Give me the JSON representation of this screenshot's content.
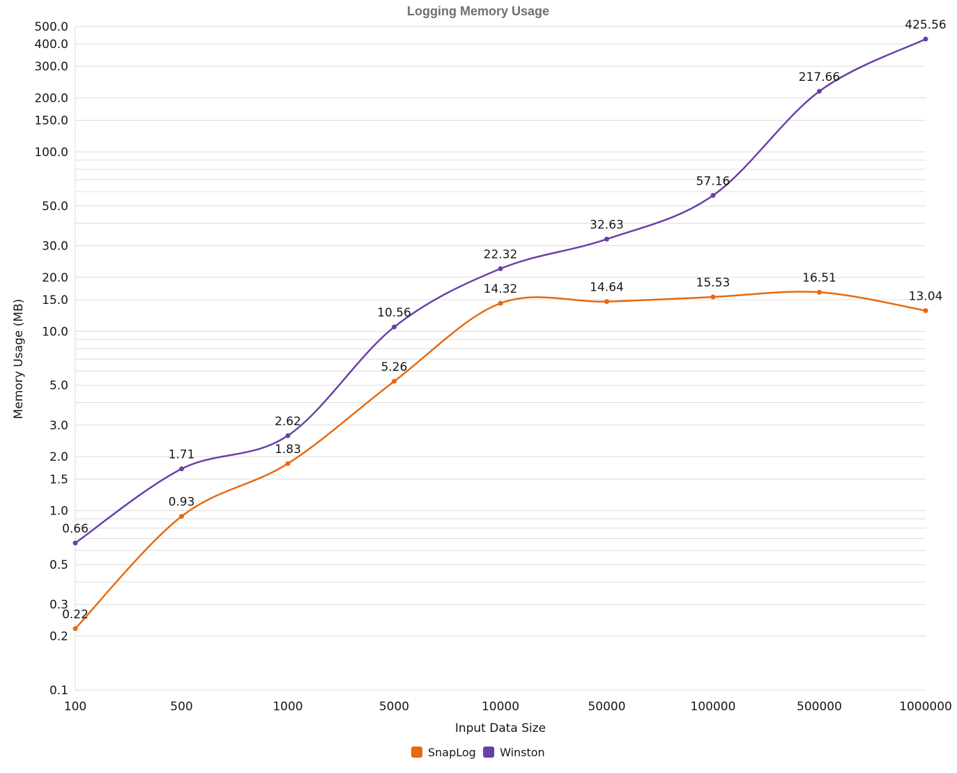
{
  "chart_data": {
    "type": "line",
    "title": "Logging Memory Usage",
    "xlabel": "Input Data Size",
    "ylabel": "Memory Usage (MB)",
    "yscale": "log",
    "ylim": [
      0.1,
      500
    ],
    "categories": [
      "100",
      "500",
      "1000",
      "5000",
      "10000",
      "50000",
      "100000",
      "500000",
      "1000000"
    ],
    "y_ticks": [
      {
        "value": 0.1,
        "label": "0.1"
      },
      {
        "value": 0.2,
        "label": "0.2"
      },
      {
        "value": 0.3,
        "label": "0.3"
      },
      {
        "value": 0.5,
        "label": "0.5"
      },
      {
        "value": 1.0,
        "label": "1.0"
      },
      {
        "value": 1.5,
        "label": "1.5"
      },
      {
        "value": 2.0,
        "label": "2.0"
      },
      {
        "value": 3.0,
        "label": "3.0"
      },
      {
        "value": 5.0,
        "label": "5.0"
      },
      {
        "value": 10.0,
        "label": "10.0"
      },
      {
        "value": 15.0,
        "label": "15.0"
      },
      {
        "value": 20.0,
        "label": "20.0"
      },
      {
        "value": 30.0,
        "label": "30.0"
      },
      {
        "value": 50.0,
        "label": "50.0"
      },
      {
        "value": 100.0,
        "label": "100.0"
      },
      {
        "value": 150.0,
        "label": "150.0"
      },
      {
        "value": 200.0,
        "label": "200.0"
      },
      {
        "value": 300.0,
        "label": "300.0"
      },
      {
        "value": 400.0,
        "label": "400.0"
      },
      {
        "value": 500.0,
        "label": "500.0"
      }
    ],
    "minor_grid": [
      0.4,
      0.6,
      0.7,
      0.8,
      0.9,
      4,
      6,
      7,
      8,
      9,
      40,
      60,
      70,
      80,
      90
    ],
    "series": [
      {
        "name": "SnapLog",
        "color": "#e8690d",
        "values": [
          0.22,
          0.93,
          1.83,
          5.26,
          14.32,
          14.64,
          15.53,
          16.51,
          13.04
        ],
        "labels": [
          "0.22",
          "0.93",
          "1.83",
          "5.26",
          "14.32",
          "14.64",
          "15.53",
          "16.51",
          "13.04"
        ]
      },
      {
        "name": "Winston",
        "color": "#6a40a8",
        "values": [
          0.66,
          1.71,
          2.62,
          10.56,
          22.32,
          32.63,
          57.16,
          217.66,
          425.56
        ],
        "labels": [
          "0.66",
          "1.71",
          "2.62",
          "10.56",
          "22.32",
          "32.63",
          "57.16",
          "217.66",
          "425.56"
        ]
      }
    ],
    "legend": {
      "position": "bottom-center"
    }
  }
}
